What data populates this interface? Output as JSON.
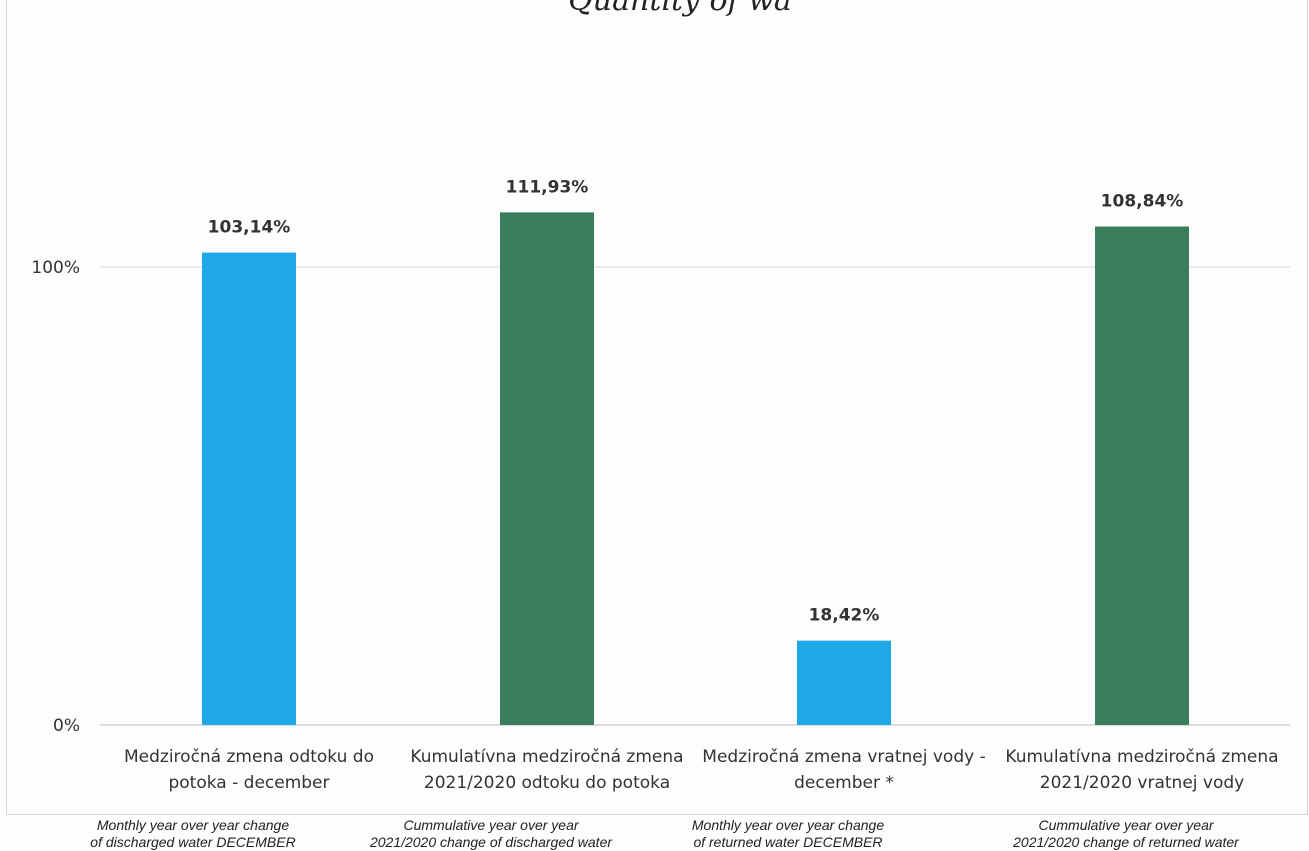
{
  "chart_data": {
    "type": "bar",
    "title": "Quantity of wa",
    "categories": [
      [
        "Medziročná zmena odtoku do",
        "potoka - december"
      ],
      [
        "Kumulatívna medziročná zmena",
        "2021/2020 odtoku do potoka"
      ],
      [
        "Medziročná zmena vratnej vody -",
        "december *"
      ],
      [
        "Kumulatívna medziročná zmena",
        "2021/2020 vratnej vody"
      ]
    ],
    "english_labels": [
      [
        "Monthly year over year change",
        "of discharged water DECEMBER"
      ],
      [
        "Cummulative year over year",
        "2021/2020 change of discharged water"
      ],
      [
        "Monthly year over year change",
        "of returned water DECEMBER"
      ],
      [
        "Cummulative year over year",
        "2021/2020 change of returned water"
      ]
    ],
    "values": [
      103.14,
      111.93,
      18.42,
      108.84
    ],
    "data_labels": [
      "103,14%",
      "111,93%",
      "18,42%",
      "108,84%"
    ],
    "bar_colors": [
      "#1fa8e8",
      "#3a7d5a",
      "#1fa8e8",
      "#3a7d5a"
    ],
    "yticks": [
      {
        "value": 0,
        "label": "0%"
      },
      {
        "value": 100,
        "label": "100%"
      }
    ],
    "ylim": [
      0,
      130
    ],
    "grid": true,
    "xlabel": "",
    "ylabel": ""
  }
}
